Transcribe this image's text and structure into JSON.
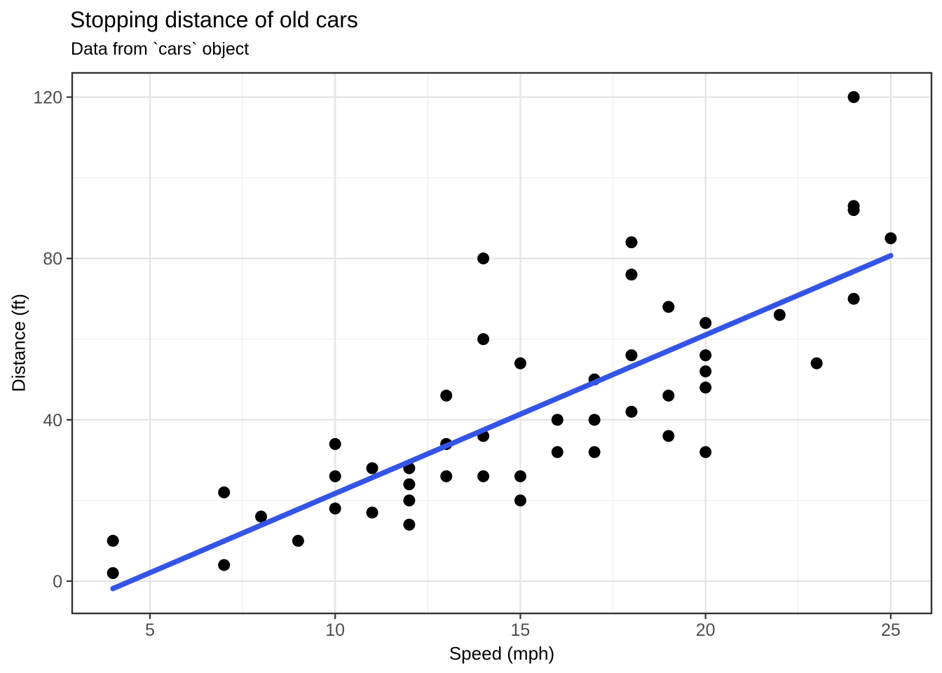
{
  "chart_data": {
    "type": "scatter",
    "title": "Stopping distance of old cars",
    "subtitle": "Data from `cars` object",
    "xlabel": "Speed (mph)",
    "ylabel": "Distance (ft)",
    "xlim": [
      2.9,
      26.1
    ],
    "ylim": [
      -8,
      126
    ],
    "x_ticks": [
      5,
      10,
      15,
      20,
      25
    ],
    "y_ticks": [
      0,
      40,
      80,
      120
    ],
    "x_minor_ticks": [
      7.5,
      12.5,
      17.5,
      22.5
    ],
    "y_minor_ticks": [
      20,
      60,
      100
    ],
    "grid": "on",
    "legend_position": "none",
    "points": [
      [
        4,
        2
      ],
      [
        4,
        10
      ],
      [
        7,
        4
      ],
      [
        7,
        22
      ],
      [
        8,
        16
      ],
      [
        9,
        10
      ],
      [
        10,
        18
      ],
      [
        10,
        26
      ],
      [
        10,
        34
      ],
      [
        11,
        17
      ],
      [
        11,
        28
      ],
      [
        12,
        14
      ],
      [
        12,
        20
      ],
      [
        12,
        24
      ],
      [
        12,
        28
      ],
      [
        13,
        26
      ],
      [
        13,
        34
      ],
      [
        13,
        34
      ],
      [
        13,
        46
      ],
      [
        14,
        26
      ],
      [
        14,
        36
      ],
      [
        14,
        60
      ],
      [
        14,
        80
      ],
      [
        15,
        20
      ],
      [
        15,
        26
      ],
      [
        15,
        54
      ],
      [
        16,
        32
      ],
      [
        16,
        40
      ],
      [
        17,
        32
      ],
      [
        17,
        40
      ],
      [
        17,
        50
      ],
      [
        18,
        42
      ],
      [
        18,
        56
      ],
      [
        18,
        76
      ],
      [
        18,
        84
      ],
      [
        19,
        36
      ],
      [
        19,
        46
      ],
      [
        19,
        68
      ],
      [
        20,
        32
      ],
      [
        20,
        48
      ],
      [
        20,
        52
      ],
      [
        20,
        56
      ],
      [
        20,
        64
      ],
      [
        22,
        66
      ],
      [
        23,
        54
      ],
      [
        24,
        70
      ],
      [
        24,
        92
      ],
      [
        24,
        93
      ],
      [
        24,
        120
      ],
      [
        25,
        85
      ]
    ],
    "trend_line": {
      "type": "linear",
      "x_start": 4,
      "y_start": -1.85,
      "x_end": 25,
      "y_end": 80.7,
      "color": "#3454E6",
      "width": 7.5
    },
    "colors": {
      "point": "#000000",
      "trend": "#3454E6",
      "grid_major": "#E3E3E3",
      "grid_minor": "#F0F0F0",
      "panel_border": "#333333",
      "tick": "#333333",
      "tick_label": "#4D4D4D",
      "title_text": "#000000",
      "background": "#FFFFFF"
    },
    "point_radius": 8.5
  }
}
